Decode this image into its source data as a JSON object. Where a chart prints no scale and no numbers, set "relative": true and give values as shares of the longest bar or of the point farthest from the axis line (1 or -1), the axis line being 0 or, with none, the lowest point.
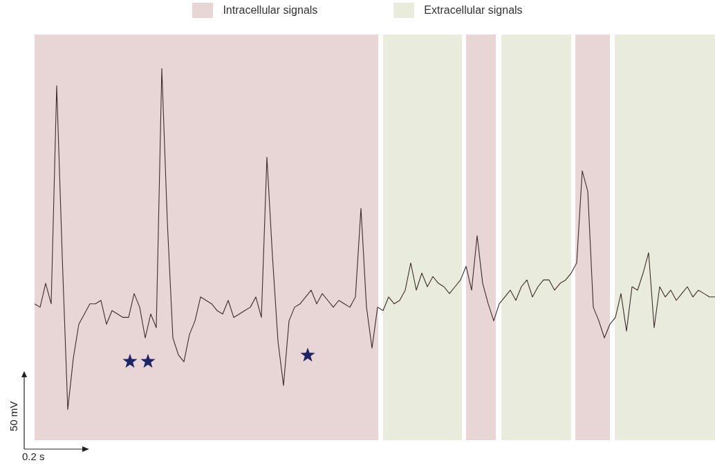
{
  "chart_data": {
    "type": "line",
    "relative": true,
    "marker": "none",
    "line_style": "solid",
    "annotations": [
      "50 mV",
      "0.2 s",
      "Intracellular signals",
      "Extracellular signals"
    ],
    "categories": [
      null,
      null,
      null,
      null,
      null,
      null,
      null,
      null,
      null,
      null,
      null,
      null,
      null,
      null,
      null,
      null,
      null,
      null,
      null,
      null,
      null,
      null,
      null,
      null,
      null,
      null,
      null,
      null,
      null,
      null,
      null,
      null,
      null,
      null,
      null,
      null,
      null,
      null,
      null,
      null,
      null,
      null,
      null,
      null,
      null,
      null,
      null,
      null,
      null,
      null,
      null,
      null,
      null,
      null,
      null,
      null,
      null,
      null,
      null,
      null,
      null,
      null,
      null,
      null,
      null,
      null,
      null,
      null,
      null,
      null,
      null,
      null,
      null,
      null,
      null,
      null,
      null,
      null,
      null,
      null,
      null,
      null,
      null,
      null,
      null,
      null,
      null,
      null,
      null,
      null,
      null,
      null,
      null,
      null,
      null,
      null,
      null,
      null,
      null,
      null,
      null,
      null,
      null,
      null,
      null,
      null,
      null,
      null,
      null,
      null,
      null,
      null,
      null,
      null,
      null,
      null,
      null,
      null,
      null,
      null,
      null,
      null,
      null,
      null
    ],
    "series": [
      {
        "color": "#3b2b2b",
        "values": [
          0.31,
          0.3,
          0.37,
          0.31,
          0.95,
          0.45,
          0,
          0.15,
          0.25,
          0.28,
          0.31,
          0.31,
          0.32,
          0.25,
          0.29,
          0.28,
          0.27,
          0.27,
          0.34,
          0.3,
          0.21,
          0.28,
          0.24,
          1,
          0.55,
          0.21,
          0.16,
          0.14,
          0.22,
          0.26,
          0.33,
          0.32,
          0.31,
          0.29,
          0.28,
          0.32,
          0.27,
          0.28,
          0.29,
          0.3,
          0.33,
          0.27,
          0.74,
          0.45,
          0.2,
          0.07,
          0.26,
          0.3,
          0.31,
          0.33,
          0.35,
          0.31,
          0.34,
          0.32,
          0.3,
          0.32,
          0.31,
          0.3,
          0.33,
          0.59,
          0.3,
          0.18,
          0.3,
          0.29,
          0.33,
          0.31,
          0.32,
          0.35,
          0.43,
          0.35,
          0.4,
          0.36,
          0.39,
          0.37,
          0.36,
          0.34,
          0.36,
          0.38,
          0.42,
          0.35,
          0.51,
          0.37,
          0.31,
          0.26,
          0.31,
          0.33,
          0.35,
          0.32,
          0.36,
          0.38,
          0.33,
          0.36,
          0.38,
          0.38,
          0.35,
          0.37,
          0.38,
          0.4,
          0.43,
          0.7,
          0.64,
          0.3,
          0.26,
          0.21,
          0.25,
          0.27,
          0.34,
          0.23,
          0.36,
          0.35,
          0.4,
          0.46,
          0.24,
          0.36,
          0.33,
          0.35,
          0.32,
          0.34,
          0.36,
          0.33,
          0.35,
          0.34,
          0.33,
          0.33
        ]
      }
    ]
  }
}
